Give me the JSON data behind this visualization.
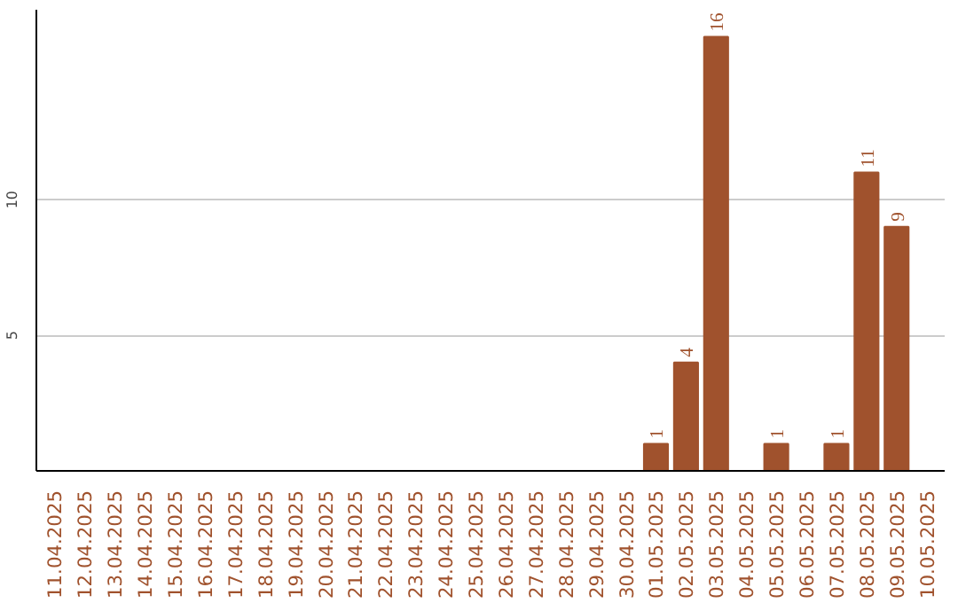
{
  "chart_data": {
    "type": "bar",
    "categories": [
      "11.04.2025",
      "12.04.2025",
      "13.04.2025",
      "14.04.2025",
      "15.04.2025",
      "16.04.2025",
      "17.04.2025",
      "18.04.2025",
      "19.04.2025",
      "20.04.2025",
      "21.04.2025",
      "22.04.2025",
      "23.04.2025",
      "24.04.2025",
      "25.04.2025",
      "26.04.2025",
      "27.04.2025",
      "28.04.2025",
      "29.04.2025",
      "30.04.2025",
      "01.05.2025",
      "02.05.2025",
      "03.05.2025",
      "04.05.2025",
      "05.05.2025",
      "06.05.2025",
      "07.05.2025",
      "08.05.2025",
      "09.05.2025",
      "10.05.2025"
    ],
    "values": [
      0,
      0,
      0,
      0,
      0,
      0,
      0,
      0,
      0,
      0,
      0,
      0,
      0,
      0,
      0,
      0,
      0,
      0,
      0,
      0,
      1,
      4,
      16,
      0,
      1,
      0,
      1,
      11,
      9,
      0
    ],
    "value_labels": [
      null,
      null,
      null,
      null,
      null,
      null,
      null,
      null,
      null,
      null,
      null,
      null,
      null,
      null,
      null,
      null,
      null,
      null,
      null,
      null,
      "1",
      "4",
      "16",
      null,
      "1",
      null,
      "1",
      "11",
      "9",
      null
    ],
    "color": "#a0522d",
    "ylim": [
      0,
      17
    ],
    "yticks": [
      5,
      10
    ],
    "grid": "y"
  }
}
